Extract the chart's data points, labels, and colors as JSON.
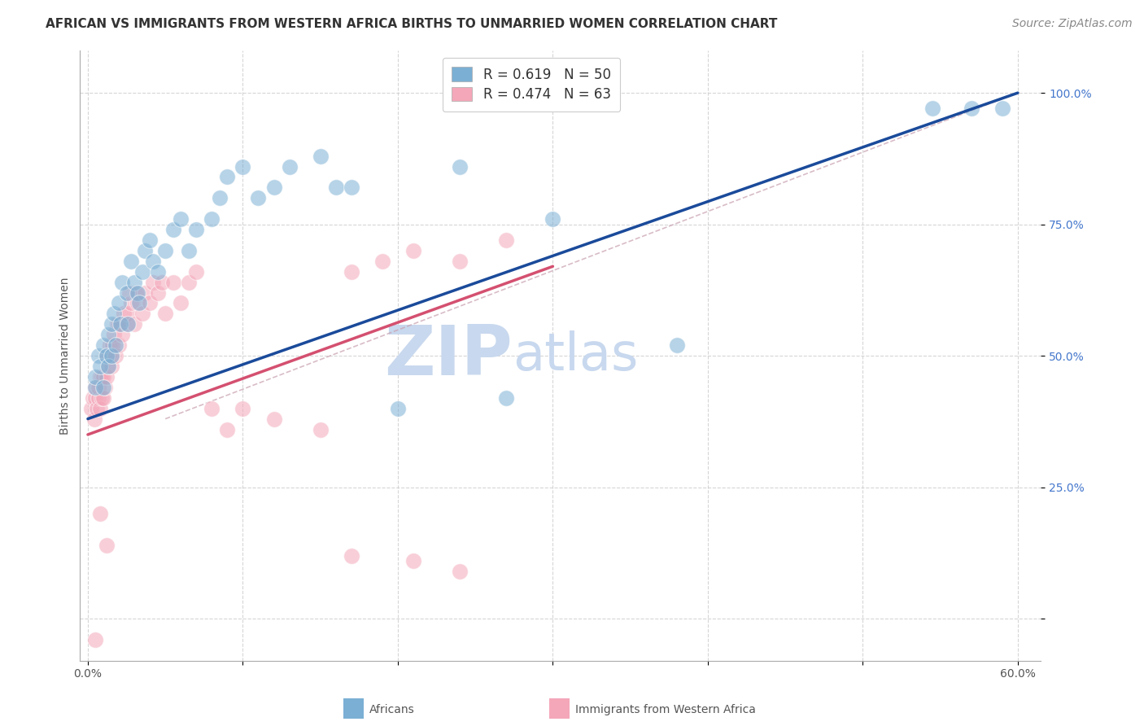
{
  "title": "AFRICAN VS IMMIGRANTS FROM WESTERN AFRICA BIRTHS TO UNMARRIED WOMEN CORRELATION CHART",
  "source": "Source: ZipAtlas.com",
  "xlabel_africans": "Africans",
  "xlabel_immigrants": "Immigrants from Western Africa",
  "ylabel": "Births to Unmarried Women",
  "xlim": [
    -0.005,
    0.615
  ],
  "ylim": [
    -0.08,
    1.08
  ],
  "xticks": [
    0.0,
    0.1,
    0.2,
    0.3,
    0.4,
    0.5,
    0.6
  ],
  "yticks": [
    0.0,
    0.25,
    0.5,
    0.75,
    1.0
  ],
  "ytick_labels": [
    "",
    "25.0%",
    "50.0%",
    "75.0%",
    "100.0%"
  ],
  "xtick_labels": [
    "0.0%",
    "",
    "",
    "",
    "",
    "",
    "60.0%"
  ],
  "grid_color": "#cccccc",
  "blue_color": "#7bafd4",
  "pink_color": "#f4a7b9",
  "blue_line_color": "#1a4a9a",
  "pink_line_color": "#d45070",
  "watermark_zip": "ZIP",
  "watermark_atlas": "atlas",
  "watermark_color": "#c8d8ee",
  "blue_r": 0.619,
  "blue_n": 50,
  "pink_r": 0.474,
  "pink_n": 63,
  "blue_line_x0": 0.0,
  "blue_line_y0": 0.38,
  "blue_line_x1": 0.6,
  "blue_line_y1": 1.0,
  "pink_line_x0": 0.0,
  "pink_line_y0": 0.35,
  "pink_line_x1": 0.3,
  "pink_line_y1": 0.67,
  "diag_line_x0": 0.0,
  "diag_line_y0": 0.38,
  "diag_line_x1": 0.6,
  "diag_line_y1": 1.0,
  "blue_points_x": [
    0.005,
    0.005,
    0.007,
    0.008,
    0.01,
    0.01,
    0.012,
    0.013,
    0.013,
    0.015,
    0.015,
    0.017,
    0.018,
    0.02,
    0.021,
    0.022,
    0.025,
    0.026,
    0.028,
    0.03,
    0.032,
    0.033,
    0.035,
    0.037,
    0.04,
    0.042,
    0.045,
    0.05,
    0.055,
    0.06,
    0.065,
    0.07,
    0.08,
    0.085,
    0.09,
    0.1,
    0.11,
    0.12,
    0.13,
    0.15,
    0.16,
    0.17,
    0.2,
    0.24,
    0.27,
    0.3,
    0.38,
    0.545,
    0.57,
    0.59
  ],
  "blue_points_y": [
    0.44,
    0.46,
    0.5,
    0.48,
    0.52,
    0.44,
    0.5,
    0.54,
    0.48,
    0.56,
    0.5,
    0.58,
    0.52,
    0.6,
    0.56,
    0.64,
    0.62,
    0.56,
    0.68,
    0.64,
    0.62,
    0.6,
    0.66,
    0.7,
    0.72,
    0.68,
    0.66,
    0.7,
    0.74,
    0.76,
    0.7,
    0.74,
    0.76,
    0.8,
    0.84,
    0.86,
    0.8,
    0.82,
    0.86,
    0.88,
    0.82,
    0.82,
    0.4,
    0.86,
    0.42,
    0.76,
    0.52,
    0.97,
    0.97,
    0.97
  ],
  "pink_points_x": [
    0.002,
    0.003,
    0.004,
    0.005,
    0.005,
    0.006,
    0.007,
    0.007,
    0.008,
    0.008,
    0.009,
    0.009,
    0.01,
    0.01,
    0.011,
    0.012,
    0.012,
    0.013,
    0.014,
    0.015,
    0.015,
    0.016,
    0.017,
    0.018,
    0.019,
    0.02,
    0.02,
    0.022,
    0.023,
    0.025,
    0.026,
    0.027,
    0.028,
    0.03,
    0.031,
    0.032,
    0.035,
    0.037,
    0.04,
    0.042,
    0.045,
    0.048,
    0.05,
    0.055,
    0.06,
    0.065,
    0.07,
    0.08,
    0.09,
    0.1,
    0.12,
    0.15,
    0.17,
    0.19,
    0.21,
    0.24,
    0.27,
    0.005,
    0.008,
    0.012,
    0.17,
    0.21,
    0.24
  ],
  "pink_points_y": [
    0.4,
    0.42,
    0.38,
    0.42,
    0.44,
    0.4,
    0.42,
    0.44,
    0.4,
    0.46,
    0.42,
    0.46,
    0.42,
    0.46,
    0.44,
    0.46,
    0.5,
    0.48,
    0.52,
    0.5,
    0.48,
    0.52,
    0.54,
    0.5,
    0.56,
    0.52,
    0.56,
    0.54,
    0.58,
    0.56,
    0.58,
    0.62,
    0.6,
    0.56,
    0.62,
    0.6,
    0.58,
    0.62,
    0.6,
    0.64,
    0.62,
    0.64,
    0.58,
    0.64,
    0.6,
    0.64,
    0.66,
    0.4,
    0.36,
    0.4,
    0.38,
    0.36,
    0.66,
    0.68,
    0.7,
    0.68,
    0.72,
    -0.04,
    0.2,
    0.14,
    0.12,
    0.11,
    0.09
  ],
  "title_fontsize": 11,
  "axis_label_fontsize": 10,
  "tick_fontsize": 10,
  "legend_fontsize": 12,
  "source_fontsize": 10
}
